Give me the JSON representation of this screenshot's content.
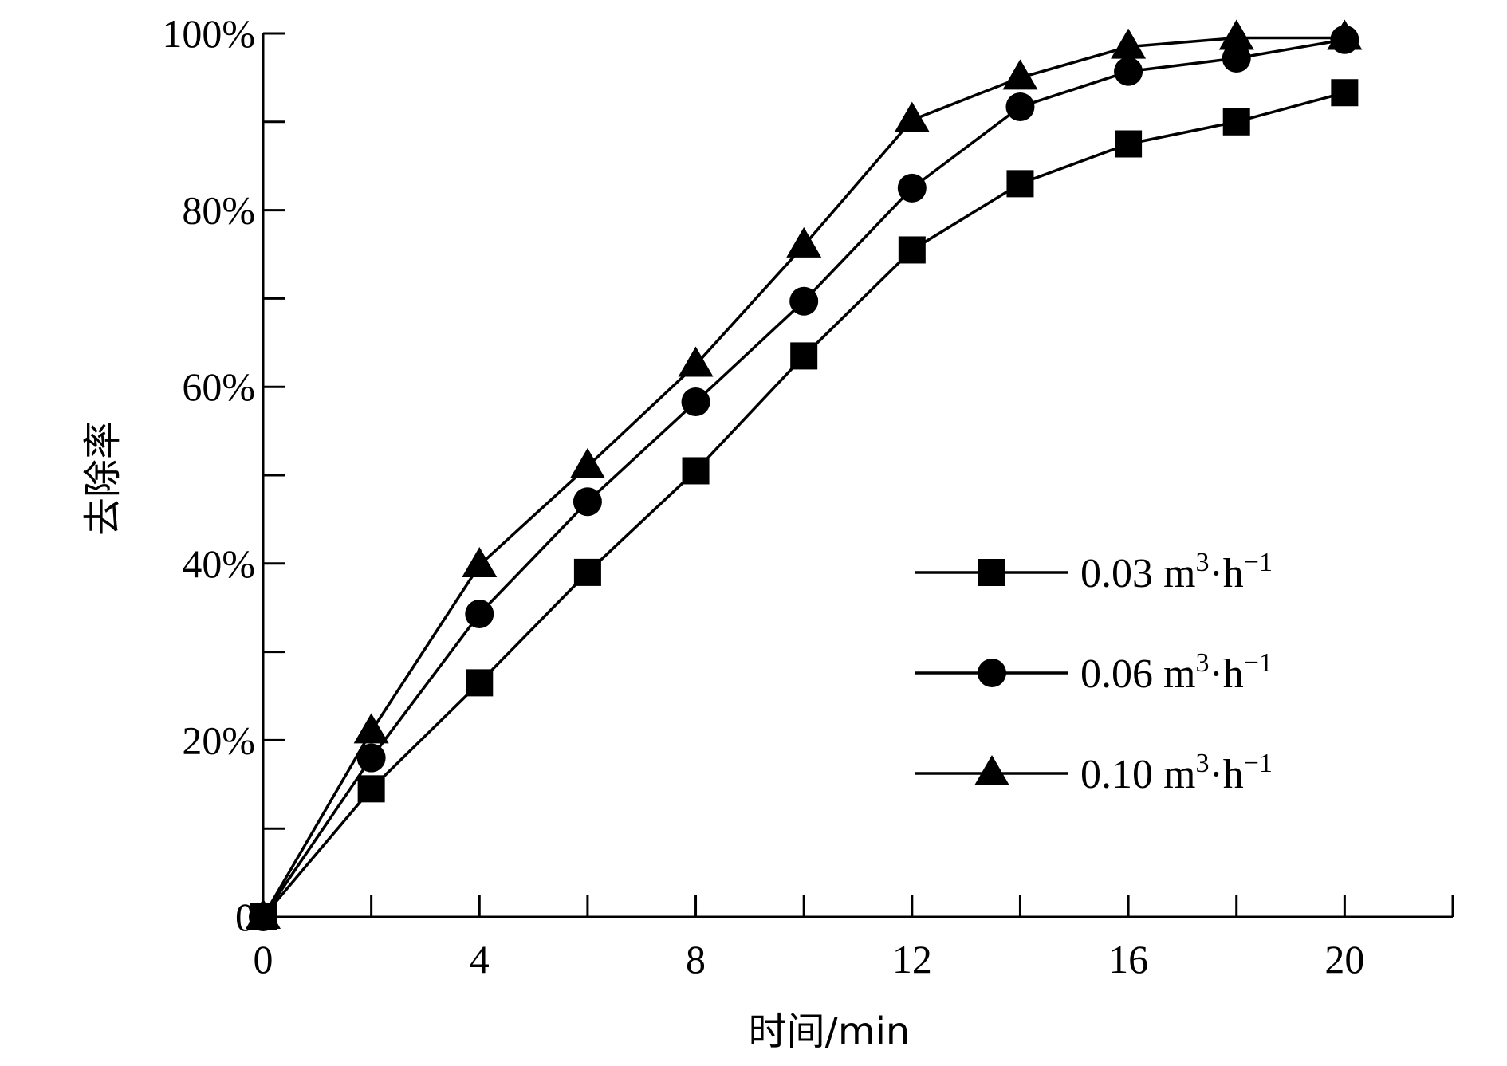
{
  "chart_data": {
    "type": "line",
    "title": "",
    "xlabel": "时间/min",
    "ylabel": "去除率",
    "xlim": [
      0,
      22
    ],
    "ylim": [
      0,
      100
    ],
    "x_ticks": [
      0,
      2,
      4,
      6,
      8,
      10,
      12,
      14,
      16,
      18,
      20,
      22
    ],
    "x_tick_labels": [
      "0",
      "4",
      "8",
      "12",
      "16",
      "20"
    ],
    "x_tick_label_values": [
      0,
      4,
      8,
      12,
      16,
      20
    ],
    "y_ticks": [
      0,
      10,
      20,
      30,
      40,
      50,
      60,
      70,
      80,
      90,
      100
    ],
    "y_tick_labels": [
      "0",
      "20%",
      "40%",
      "60%",
      "80%",
      "100%"
    ],
    "y_tick_label_values": [
      0,
      20,
      40,
      60,
      80,
      100
    ],
    "grid": false,
    "legend_position": "right",
    "x": [
      0,
      2,
      4,
      6,
      8,
      10,
      12,
      14,
      16,
      18,
      20
    ],
    "series": [
      {
        "marker": "square",
        "legend": {
          "prefix": "0.03 m",
          "sup1": "3",
          "mid": "·h",
          "sup2": "−1"
        },
        "values": [
          0,
          14.5,
          26.5,
          39,
          50.5,
          63.5,
          75.5,
          83,
          87.5,
          90,
          93.3
        ]
      },
      {
        "marker": "circle",
        "legend": {
          "prefix": "0.06 m",
          "sup1": "3",
          "mid": "·h",
          "sup2": "−1"
        },
        "values": [
          0,
          18,
          34.3,
          47,
          58.3,
          69.7,
          82.5,
          91.7,
          95.7,
          97.2,
          99.3
        ]
      },
      {
        "marker": "triangle",
        "legend": {
          "prefix": "0.10 m",
          "sup1": "3",
          "mid": "·h",
          "sup2": "−1"
        },
        "values": [
          0,
          21,
          39.8,
          51,
          62.5,
          76,
          90.2,
          95,
          98.5,
          99.5,
          99.5
        ]
      }
    ]
  }
}
